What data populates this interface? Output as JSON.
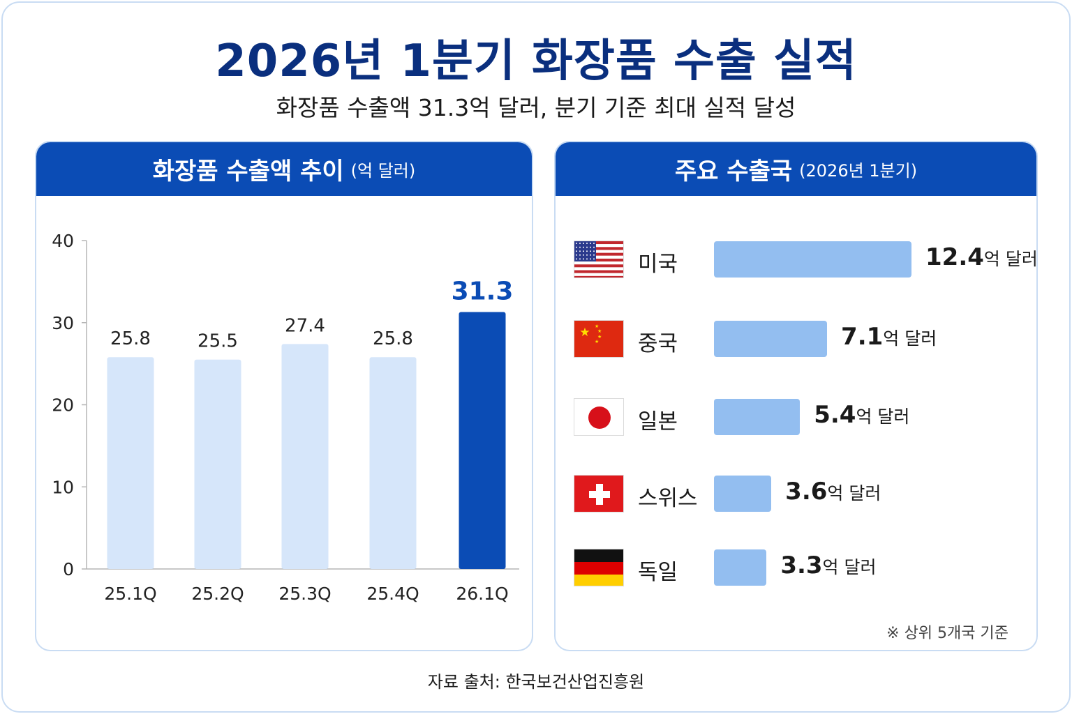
{
  "title": "2026년 1분기 화장품 수출 실적",
  "subtitle": "화장품 수출액 31.3억 달러, 분기 기준 최대 실적 달성",
  "left_panel": {
    "title": "화장품 수출액 추이",
    "unit": "(억 달러)"
  },
  "right_panel": {
    "title": "주요 수출국",
    "period": "(2026년 1분기)",
    "note": "※ 상위 5개국 기준"
  },
  "source": "자료 출처: 한국보건산업진흥원",
  "colors": {
    "header": "#0b4cb5",
    "bar_light": "#d6e6fa",
    "bar_highlight": "#0b4cb5",
    "country_bar": "#93bef0",
    "title": "#0a2f7e"
  },
  "chart_data": [
    {
      "type": "bar",
      "categories": [
        "25.1Q",
        "25.2Q",
        "25.3Q",
        "25.4Q",
        "26.1Q"
      ],
      "values": [
        25.8,
        25.5,
        27.4,
        25.8,
        31.3
      ],
      "labels": [
        "25.8",
        "25.5",
        "27.4",
        "25.8",
        "31.3"
      ],
      "highlight_index": 4,
      "ylim": [
        0,
        40
      ],
      "yticks": [
        "0",
        "10",
        "20",
        "30",
        "40"
      ],
      "ytick_values": [
        0,
        10,
        20,
        30,
        40
      ]
    },
    {
      "type": "bar",
      "orientation": "horizontal",
      "categories": [
        "미국",
        "중국",
        "일본",
        "스위스",
        "독일"
      ],
      "values": [
        12.4,
        7.1,
        5.4,
        3.6,
        3.3
      ],
      "labels": [
        "12.4",
        "7.1",
        "5.4",
        "3.6",
        "3.3"
      ],
      "unit": "억 달러",
      "flags": [
        "us-flag-icon",
        "china-flag-icon",
        "japan-flag-icon",
        "switzerland-flag-icon",
        "germany-flag-icon"
      ]
    }
  ]
}
